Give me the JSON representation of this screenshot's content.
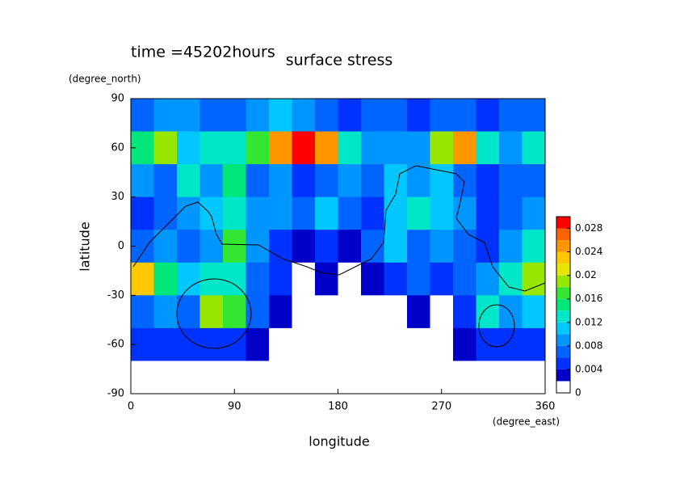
{
  "chart_data": {
    "type": "contour",
    "title": "surface stress",
    "subtitle": "time =45202hours",
    "x_label": "longitude",
    "x_unit": "(degree_east)",
    "y_label": "latitude",
    "y_unit": "(degree_north)",
    "xlim": [
      0,
      360
    ],
    "xticks": [
      0,
      90,
      180,
      270,
      360
    ],
    "ylim": [
      -90,
      90
    ],
    "yticks": [
      90,
      60,
      30,
      0,
      -30,
      -60,
      -90
    ],
    "x": [
      10,
      30,
      50,
      70,
      90,
      110,
      130,
      150,
      170,
      190,
      210,
      230,
      250,
      270,
      290,
      310,
      330,
      350
    ],
    "y": [
      80,
      60,
      40,
      20,
      0,
      -20,
      -40,
      -60,
      -80
    ],
    "z": [
      [
        0.006,
        0.008,
        0.008,
        0.006,
        0.006,
        0.008,
        0.01,
        0.008,
        0.006,
        0.004,
        0.006,
        0.006,
        0.004,
        0.006,
        0.006,
        0.004,
        0.006,
        0.006
      ],
      [
        0.014,
        0.018,
        0.01,
        0.012,
        0.012,
        0.016,
        0.024,
        0.03,
        0.024,
        0.012,
        0.008,
        0.008,
        0.008,
        0.018,
        0.024,
        0.012,
        0.008,
        0.012
      ],
      [
        0.008,
        0.006,
        0.012,
        0.008,
        0.014,
        0.006,
        0.008,
        0.004,
        0.006,
        0.008,
        0.006,
        0.01,
        0.008,
        0.01,
        0.006,
        0.004,
        0.006,
        0.006
      ],
      [
        0.004,
        0.006,
        0.008,
        0.01,
        0.012,
        0.008,
        0.008,
        0.006,
        0.01,
        0.006,
        0.004,
        0.01,
        0.012,
        0.01,
        0.008,
        0.004,
        0.006,
        0.008
      ],
      [
        0.006,
        0.008,
        0.006,
        0.008,
        0.016,
        0.008,
        0.004,
        0.002,
        0.004,
        0.002,
        0.006,
        0.01,
        0.006,
        0.008,
        0.006,
        0.004,
        0.008,
        0.012
      ],
      [
        0.022,
        0.014,
        0.01,
        0.012,
        0.012,
        0.006,
        0.004,
        0,
        0.002,
        0,
        0.002,
        0.004,
        0.006,
        0.004,
        0.006,
        0.008,
        0.012,
        0.018
      ],
      [
        0.006,
        0.008,
        0.006,
        0.018,
        0.016,
        0.006,
        0.002,
        0,
        0,
        0,
        0,
        0,
        0.002,
        0,
        0.004,
        0.012,
        0.008,
        0.01
      ],
      [
        0.004,
        0.004,
        0.004,
        0.004,
        0.004,
        0.002,
        0,
        0,
        0,
        0,
        0,
        0,
        0,
        0,
        0.002,
        0.004,
        0.004,
        0.004
      ],
      [
        0,
        0,
        0,
        0,
        0,
        0,
        0,
        0,
        0,
        0,
        0,
        0,
        0,
        0,
        0,
        0,
        0,
        0
      ]
    ],
    "levels": [
      0,
      0.002,
      0.004,
      0.006,
      0.008,
      0.01,
      0.012,
      0.014,
      0.016,
      0.018,
      0.02,
      0.022,
      0.024,
      0.026,
      0.028,
      0.03
    ],
    "colors": [
      "#ffffff",
      "#0000c8",
      "#0032ff",
      "#0064ff",
      "#0096ff",
      "#00c8ff",
      "#00e6c8",
      "#00e678",
      "#32e632",
      "#96e600",
      "#e6e600",
      "#ffc800",
      "#ff9600",
      "#ff6400",
      "#ff0000"
    ],
    "colorbar_ticks": [
      0,
      0.004,
      0.008,
      0.012,
      0.016,
      0.02,
      0.024,
      0.028
    ]
  }
}
